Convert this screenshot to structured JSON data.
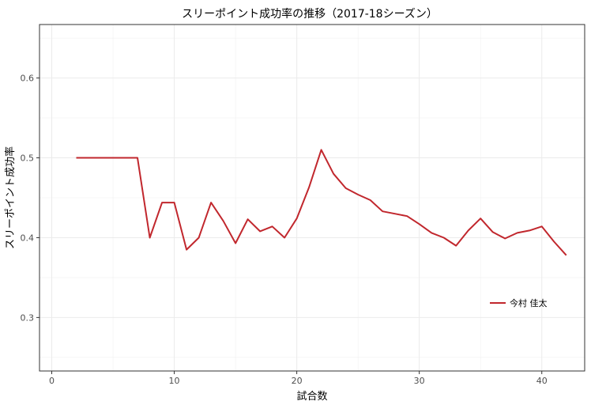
{
  "chart_data": {
    "type": "line",
    "title": "スリーポイント成功率の推移（2017-18シーズン）",
    "xlabel": "試合数",
    "ylabel": "スリーポイント成功率",
    "xlim": [
      -1,
      43.5
    ],
    "ylim": [
      0.233,
      0.667
    ],
    "x_ticks": [
      0,
      10,
      20,
      30,
      40
    ],
    "y_ticks": [
      0.3,
      0.4,
      0.5,
      0.6
    ],
    "x_tick_labels": [
      "0",
      "10",
      "20",
      "30",
      "40"
    ],
    "y_tick_labels": [
      "0.3",
      "0.4",
      "0.5",
      "0.6"
    ],
    "grid": true,
    "legend_position": "inside-bottom-right",
    "series": [
      {
        "name": "今村 佳太",
        "color": "#c1272d",
        "x": [
          2,
          3,
          4,
          5,
          6,
          7,
          8,
          9,
          10,
          11,
          12,
          13,
          14,
          15,
          16,
          17,
          18,
          19,
          20,
          21,
          22,
          23,
          24,
          25,
          26,
          27,
          28,
          29,
          30,
          31,
          32,
          33,
          34,
          35,
          36,
          37,
          38,
          39,
          40,
          41,
          42
        ],
        "y": [
          0.5,
          0.5,
          0.5,
          0.5,
          0.5,
          0.5,
          0.4,
          0.444,
          0.444,
          0.385,
          0.4,
          0.444,
          0.421,
          0.393,
          0.423,
          0.408,
          0.414,
          0.4,
          0.424,
          0.463,
          0.51,
          0.48,
          0.462,
          0.454,
          0.447,
          0.433,
          0.43,
          0.427,
          0.417,
          0.406,
          0.4,
          0.39,
          0.409,
          0.424,
          0.407,
          0.399,
          0.406,
          0.409,
          0.414,
          0.395,
          0.378
        ]
      }
    ]
  }
}
